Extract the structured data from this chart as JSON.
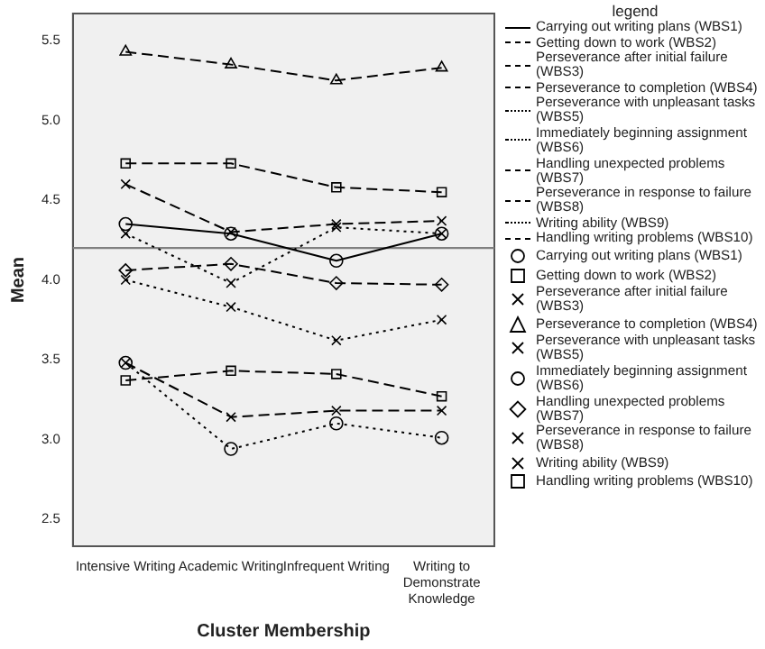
{
  "chart_data": {
    "type": "line",
    "xlabel": "Cluster Membership",
    "ylabel": "Mean",
    "legend_title": "legend",
    "legend": "right",
    "grid": false,
    "categories": [
      "Intensive Writing",
      "Academic Writing",
      "Infrequent Writing",
      "Writing to Demonstrate Knowledge"
    ],
    "ylim": [
      2.33,
      5.67
    ],
    "yticks": [
      2.5,
      {
        "value": 3,
        "label": "3.0"
      },
      3.5,
      {
        "value": 4,
        "label": "4.0"
      },
      4.5,
      {
        "value": 5,
        "label": "5.0"
      },
      5.5
    ],
    "ref_lines": [
      {
        "axis": "y",
        "value": 4.2,
        "color": "#808080"
      }
    ],
    "series": [
      {
        "name": "Carrying out writing plans (WBS1)",
        "color": "#000000",
        "marker": "circle",
        "line_style": "solid",
        "values": [
          4.35,
          4.29,
          4.12,
          4.29
        ]
      },
      {
        "name": "Getting down to work (WBS2)",
        "color": "#000000",
        "marker": "square",
        "line_style": "dashed",
        "values": [
          3.37,
          3.43,
          3.41,
          3.27
        ]
      },
      {
        "name": "Perseverance after initial failure (WBS3)",
        "color": "#000000",
        "marker": "cross",
        "line_style": "dashed",
        "values": [
          4.6,
          4.3,
          4.35,
          4.37
        ]
      },
      {
        "name": "Perseverance to completion (WBS4)",
        "color": "#000000",
        "marker": "triangle",
        "line_style": "dashed",
        "values": [
          5.43,
          5.35,
          5.25,
          5.33
        ]
      },
      {
        "name": "Perseverance with unpleasant tasks (WBS5)",
        "color": "#000000",
        "marker": "cross",
        "line_style": "dotted",
        "values": [
          4.29,
          3.98,
          4.33,
          4.29
        ]
      },
      {
        "name": "Immediately beginning assignment (WBS6)",
        "color": "#000000",
        "marker": "circle",
        "line_style": "dotted",
        "values": [
          3.48,
          2.94,
          3.1,
          3.01
        ]
      },
      {
        "name": "Handling unexpected problems (WBS7)",
        "color": "#000000",
        "marker": "diamond",
        "line_style": "dashed",
        "values": [
          4.06,
          4.1,
          3.98,
          3.97
        ]
      },
      {
        "name": "Perseverance in response to failure (WBS8)",
        "color": "#000000",
        "marker": "cross",
        "line_style": "dashed",
        "values": [
          3.48,
          3.14,
          3.18,
          3.18
        ]
      },
      {
        "name": "Writing ability (WBS9)",
        "color": "#000000",
        "marker": "cross",
        "line_style": "dotted",
        "values": [
          4.0,
          3.83,
          3.62,
          3.75
        ]
      },
      {
        "name": "Handling writing problems (WBS10)",
        "color": "#000000",
        "marker": "square",
        "line_style": "dashed",
        "values": [
          4.73,
          4.73,
          4.58,
          4.55
        ]
      }
    ]
  }
}
